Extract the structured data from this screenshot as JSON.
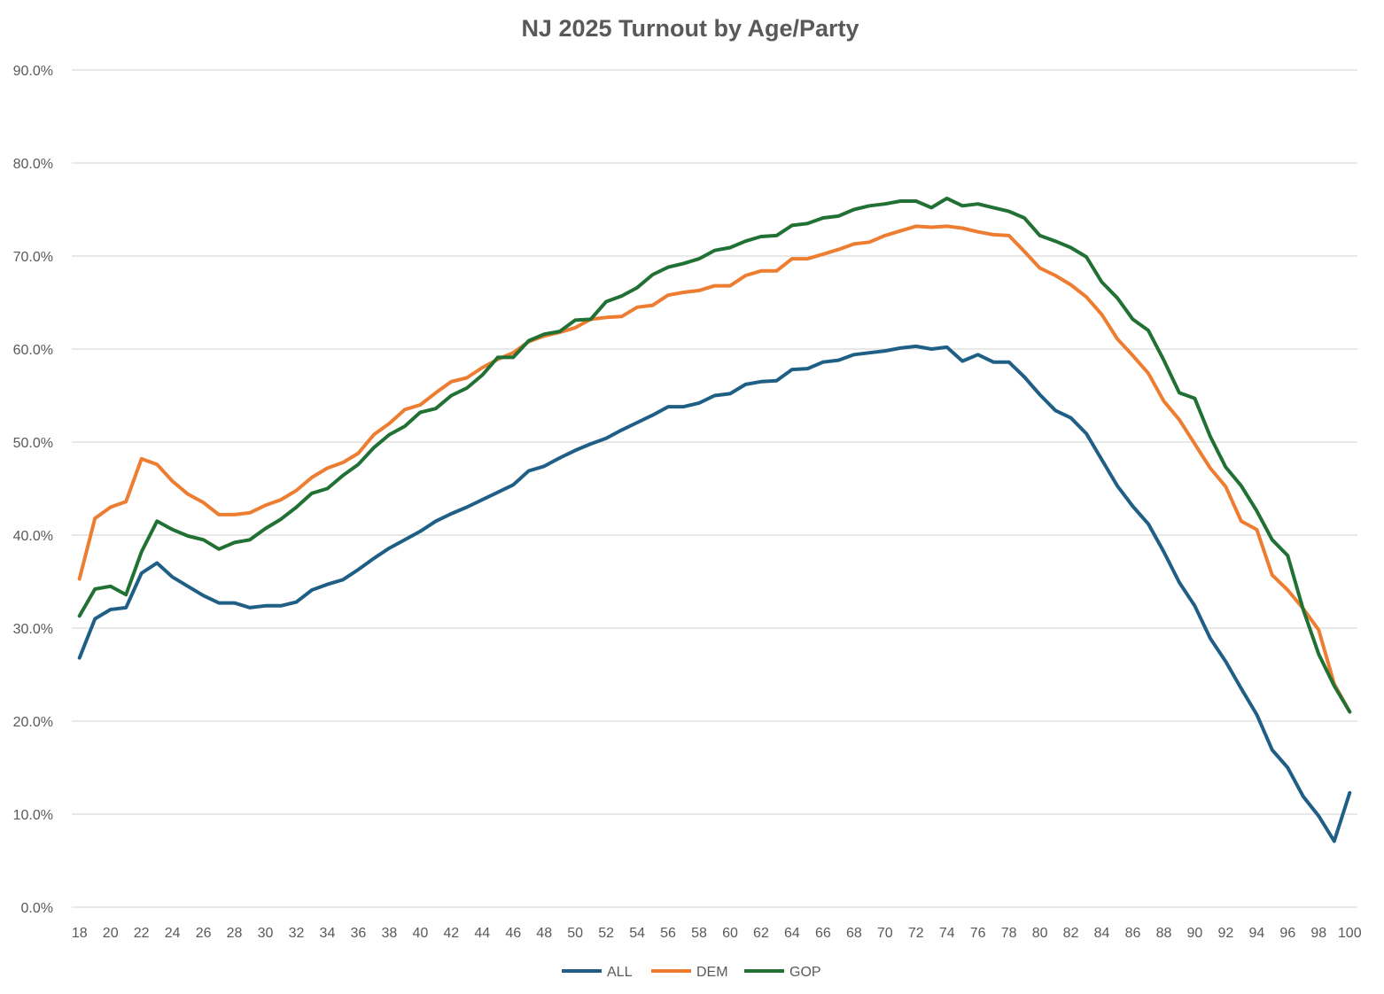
{
  "chart_data": {
    "type": "line",
    "title": "NJ 2025 Turnout by Age/Party",
    "xlabel": "",
    "ylabel": "",
    "ylim": [
      0,
      90
    ],
    "yticks": [
      "0.0%",
      "10.0%",
      "20.0%",
      "30.0%",
      "40.0%",
      "50.0%",
      "60.0%",
      "70.0%",
      "80.0%",
      "90.0%"
    ],
    "xticks": [
      "18",
      "20",
      "22",
      "24",
      "26",
      "28",
      "30",
      "32",
      "34",
      "36",
      "38",
      "40",
      "42",
      "44",
      "46",
      "48",
      "50",
      "52",
      "54",
      "56",
      "58",
      "60",
      "62",
      "64",
      "66",
      "68",
      "70",
      "72",
      "74",
      "76",
      "78",
      "80",
      "82",
      "84",
      "86",
      "88",
      "90",
      "92",
      "94",
      "96",
      "98",
      "100"
    ],
    "grid": true,
    "legend_position": "bottom",
    "x": [
      18,
      19,
      20,
      21,
      22,
      23,
      24,
      25,
      26,
      27,
      28,
      29,
      30,
      31,
      32,
      33,
      34,
      35,
      36,
      37,
      38,
      39,
      40,
      41,
      42,
      43,
      44,
      45,
      46,
      47,
      48,
      49,
      50,
      51,
      52,
      53,
      54,
      55,
      56,
      57,
      58,
      59,
      60,
      61,
      62,
      63,
      64,
      65,
      66,
      67,
      68,
      69,
      70,
      71,
      72,
      73,
      74,
      75,
      76,
      77,
      78,
      79,
      80,
      81,
      82,
      83,
      84,
      85,
      86,
      87,
      88,
      89,
      90,
      91,
      92,
      93,
      94,
      95,
      96,
      97,
      98,
      99,
      100
    ],
    "series": [
      {
        "name": "ALL",
        "color": "#1f5f86",
        "values": [
          26.8,
          31.0,
          32.0,
          32.2,
          35.9,
          37.0,
          35.5,
          34.5,
          33.5,
          32.7,
          32.7,
          32.2,
          32.4,
          32.4,
          32.8,
          34.1,
          34.7,
          35.2,
          36.3,
          37.5,
          38.6,
          39.5,
          40.4,
          41.5,
          42.3,
          43.0,
          43.8,
          44.6,
          45.4,
          46.9,
          47.4,
          48.3,
          49.1,
          49.8,
          50.4,
          51.3,
          52.1,
          52.9,
          53.8,
          53.8,
          54.2,
          55.0,
          55.2,
          56.2,
          56.5,
          56.6,
          57.8,
          57.9,
          58.6,
          58.8,
          59.4,
          59.6,
          59.8,
          60.1,
          60.3,
          60.0,
          60.2,
          58.7,
          59.4,
          58.6,
          58.6,
          57.0,
          55.1,
          53.4,
          52.6,
          50.9,
          48.1,
          45.3,
          43.1,
          41.2,
          38.2,
          34.9,
          32.4,
          28.9,
          26.4,
          23.5,
          20.7,
          16.9,
          15.0,
          11.9,
          9.8,
          7.1,
          12.3
        ]
      },
      {
        "name": "DEM",
        "color": "#ed7d31",
        "values": [
          35.3,
          41.8,
          43.0,
          43.6,
          48.2,
          47.6,
          45.8,
          44.4,
          43.5,
          42.2,
          42.2,
          42.4,
          43.2,
          43.8,
          44.8,
          46.2,
          47.2,
          47.8,
          48.8,
          50.8,
          52.0,
          53.5,
          54.0,
          55.3,
          56.5,
          56.9,
          58.0,
          58.9,
          59.6,
          60.8,
          61.4,
          61.8,
          62.3,
          63.2,
          63.4,
          63.5,
          64.5,
          64.7,
          65.8,
          66.1,
          66.3,
          66.8,
          66.8,
          67.9,
          68.4,
          68.4,
          69.7,
          69.7,
          70.2,
          70.7,
          71.3,
          71.5,
          72.2,
          72.7,
          73.2,
          73.1,
          73.2,
          73.0,
          72.6,
          72.3,
          72.2,
          70.5,
          68.7,
          67.9,
          66.9,
          65.6,
          63.7,
          61.1,
          59.3,
          57.4,
          54.4,
          52.4,
          49.8,
          47.2,
          45.2,
          41.5,
          40.6,
          35.7,
          34.1,
          32.1,
          29.8,
          24.0,
          21.0
        ]
      },
      {
        "name": "GOP",
        "color": "#217034",
        "values": [
          31.3,
          34.2,
          34.5,
          33.6,
          38.2,
          41.5,
          40.6,
          39.9,
          39.5,
          38.5,
          39.2,
          39.5,
          40.7,
          41.7,
          43.0,
          44.5,
          45.0,
          46.4,
          47.6,
          49.4,
          50.8,
          51.7,
          53.2,
          53.6,
          55.0,
          55.8,
          57.2,
          59.1,
          59.1,
          60.9,
          61.6,
          61.9,
          63.1,
          63.2,
          65.1,
          65.7,
          66.6,
          68.0,
          68.8,
          69.2,
          69.7,
          70.6,
          70.9,
          71.6,
          72.1,
          72.2,
          73.3,
          73.5,
          74.1,
          74.3,
          75.0,
          75.4,
          75.6,
          75.9,
          75.9,
          75.2,
          76.2,
          75.4,
          75.6,
          75.2,
          74.8,
          74.1,
          72.2,
          71.6,
          70.9,
          69.9,
          67.2,
          65.5,
          63.2,
          62.0,
          58.8,
          55.3,
          54.7,
          50.6,
          47.3,
          45.3,
          42.6,
          39.5,
          37.8,
          32.0,
          27.2,
          23.8,
          21.0
        ]
      }
    ]
  }
}
